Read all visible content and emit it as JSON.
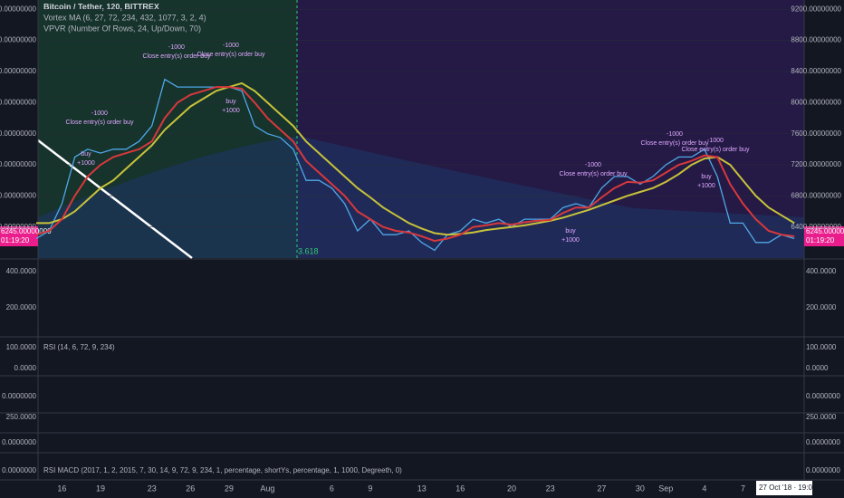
{
  "chart_data": {
    "type": "line",
    "header": [
      "Bitcoin / Tether, 120, BITTREX",
      "Vortex MA (6, 27, 72, 234, 432, 1077, 3, 2, 4)",
      "VPVR (Number Of Rows, 24, Up/Down, 70)"
    ],
    "last_price": "6245.00000000",
    "countdown": "01:19:20",
    "fib_label": "3.618",
    "cursor_date": "27 Oct '18 · 19:00",
    "categories": [
      null,
      null,
      "16",
      null,
      null,
      "19",
      null,
      null,
      null,
      "23",
      null,
      null,
      "26",
      null,
      null,
      "29",
      null,
      null,
      "Aug",
      null,
      null,
      null,
      null,
      "6",
      null,
      null,
      "9",
      null,
      null,
      null,
      "13",
      null,
      null,
      "16",
      null,
      null,
      null,
      "20",
      null,
      null,
      "23",
      null,
      null,
      null,
      "27",
      null,
      null,
      "30",
      null,
      "Sep",
      null,
      null,
      "4",
      null,
      null,
      "7",
      null,
      null,
      null,
      null
    ],
    "series": [
      {
        "color": "#4fa8e8",
        "values": [
          6250,
          6350,
          6700,
          7300,
          7400,
          7350,
          7400,
          7400,
          7500,
          7700,
          8300,
          8200,
          8200,
          8200,
          8200,
          8200,
          8150,
          7700,
          7600,
          7550,
          7400,
          7000,
          7000,
          6900,
          6700,
          6350,
          6500,
          6300,
          6300,
          6350,
          6200,
          6100,
          6300,
          6350,
          6500,
          6450,
          6500,
          6400,
          6500,
          6500,
          6500,
          6650,
          6700,
          6650,
          6900,
          7050,
          7050,
          6950,
          7050,
          7200,
          7300,
          7300,
          7400,
          7050,
          6450,
          6450,
          6200,
          6200,
          6300,
          6250
        ]
      },
      {
        "color": "#c8c23a",
        "values": [
          6450,
          6450,
          6500,
          6600,
          6750,
          6900,
          7000,
          7150,
          7300,
          7450,
          7650,
          7800,
          7950,
          8050,
          8150,
          8200,
          8250,
          8150,
          8000,
          7850,
          7700,
          7500,
          7350,
          7200,
          7050,
          6900,
          6780,
          6650,
          6550,
          6450,
          6380,
          6320,
          6300,
          6310,
          6330,
          6360,
          6380,
          6400,
          6420,
          6450,
          6480,
          6520,
          6570,
          6620,
          6680,
          6740,
          6800,
          6850,
          6900,
          6980,
          7080,
          7200,
          7280,
          7300,
          7200,
          7000,
          6800,
          6650,
          6550,
          6450
        ]
      },
      {
        "color": "#d8383c",
        "values": [
          6300,
          6350,
          6500,
          6800,
          7050,
          7200,
          7300,
          7350,
          7400,
          7500,
          7800,
          8000,
          8100,
          8150,
          8200,
          8200,
          8180,
          8000,
          7800,
          7650,
          7500,
          7250,
          7100,
          6950,
          6800,
          6600,
          6500,
          6400,
          6350,
          6330,
          6280,
          6220,
          6250,
          6300,
          6400,
          6420,
          6450,
          6430,
          6460,
          6480,
          6490,
          6580,
          6650,
          6650,
          6780,
          6900,
          6980,
          6970,
          7000,
          7100,
          7200,
          7250,
          7320,
          7300,
          6950,
          6700,
          6500,
          6350,
          6300,
          6280
        ]
      }
    ],
    "ylim": [
      6000,
      9320
    ],
    "yticks": [
      {
        "value": 6400,
        "label": "6400.00000000"
      },
      {
        "value": 6800,
        "label": "6800.00000000"
      },
      {
        "value": 7200,
        "label": "7200.00000000"
      },
      {
        "value": 7600,
        "label": "7600.00000000"
      },
      {
        "value": 8000,
        "label": "8000.00000000"
      },
      {
        "value": 8400,
        "label": "8400.00000000"
      },
      {
        "value": 8800,
        "label": "8800.00000000"
      },
      {
        "value": 9200,
        "label": "9200.00000000"
      }
    ],
    "annotations": [
      {
        "text": "Close entry(s) order buy",
        "amount": "-1000"
      },
      {
        "text": "Close entry(s) order buy",
        "amount": "-1000"
      },
      {
        "text": "Close entry(s) order buy",
        "amount": "-1000"
      },
      {
        "text": "Close entry(s) order buy",
        "amount": "-1000"
      },
      {
        "text": "Close entry(s) order buy",
        "amount": "-1000"
      },
      {
        "text": "Close entry(s) order buy",
        "amount": "-1000"
      },
      {
        "text": "buy",
        "amount": "+1000"
      },
      {
        "text": "buy",
        "amount": "+1000"
      },
      {
        "text": "buy",
        "amount": "+1000"
      },
      {
        "text": "buy",
        "amount": "+1000"
      }
    ],
    "panes": [
      {
        "labels": [
          "400.0000",
          "200.0000"
        ]
      },
      {
        "title": "RSI (14, 6, 72, 9, 234)",
        "labels": [
          "100.0000",
          "0.0000"
        ]
      },
      {
        "labels": [
          "0.0000000"
        ]
      },
      {
        "labels": [
          "250.0000"
        ]
      },
      {
        "labels": [
          "0.0000000"
        ]
      },
      {
        "title": "RSI MACD (2017, 1, 2, 2015, 7, 30, 14, 9, 72, 9, 234, 1, percentage, shortYs, percentage, 1, 1000, Degreeth, 0)",
        "labels": [
          "0.0000000"
        ]
      }
    ]
  }
}
